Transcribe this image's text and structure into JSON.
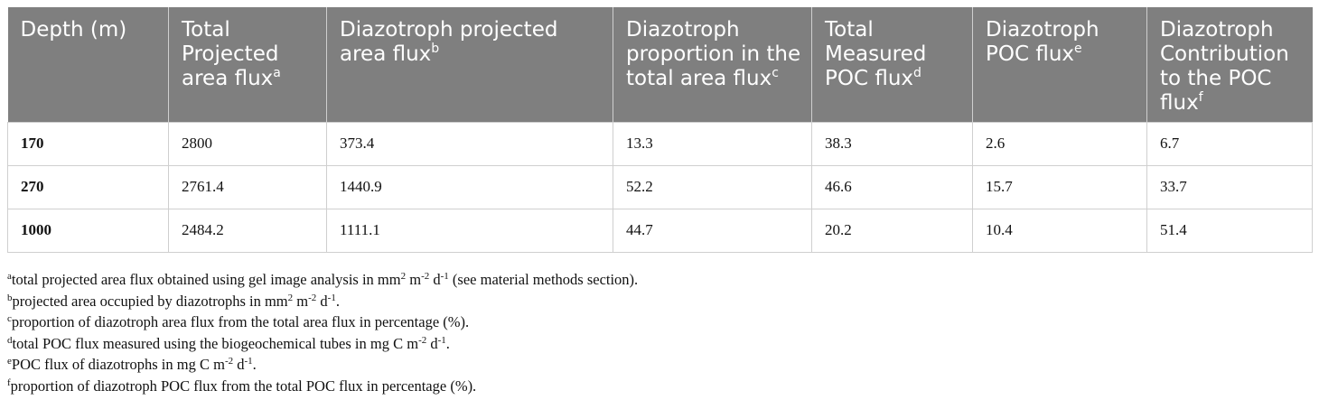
{
  "table": {
    "headers": [
      {
        "text": "Depth (m)",
        "sup": ""
      },
      {
        "text": "Total Projected area flux",
        "sup": "a"
      },
      {
        "text": "Diazotroph projected area flux",
        "sup": "b"
      },
      {
        "text": "Diazotroph proportion in the total area flux",
        "sup": "c"
      },
      {
        "text": "Total Measured POC flux",
        "sup": "d"
      },
      {
        "text": "Diazotroph POC flux",
        "sup": "e"
      },
      {
        "text": "Diazotroph Contribution to the POC flux",
        "sup": "f"
      }
    ],
    "rows": [
      [
        "170",
        "2800",
        "373.4",
        "13.3",
        "38.3",
        "2.6",
        "6.7"
      ],
      [
        "270",
        "2761.4",
        "1440.9",
        "52.2",
        "46.6",
        "15.7",
        "33.7"
      ],
      [
        "1000",
        "2484.2",
        "1111.1",
        "44.7",
        "20.2",
        "10.4",
        "51.4"
      ]
    ]
  },
  "footnotes": {
    "a": {
      "mark": "a",
      "t1": "total projected area flux obtained using gel image analysis in mm",
      "s1": "2",
      "t2": " m",
      "s2": "-2",
      "t3": " d",
      "s3": "-1",
      "t4": " (see material methods section)."
    },
    "b": {
      "mark": "b",
      "t1": "projected area occupied by diazotrophs in mm",
      "s1": "2",
      "t2": " m",
      "s2": "-2",
      "t3": " d",
      "s3": "-1",
      "t4": "."
    },
    "c": {
      "mark": "c",
      "t1": "proportion of diazotroph area flux from the total area flux in percentage (%)."
    },
    "d": {
      "mark": "d",
      "t1": "total POC flux measured using the biogeochemical tubes in mg C m",
      "s1": "-2",
      "t2": " d",
      "s2": "-1",
      "t3": "."
    },
    "e": {
      "mark": "e",
      "t1": "POC flux of diazotrophs in mg C m",
      "s1": "-2",
      "t2": " d",
      "s2": "-1",
      "t3": "."
    },
    "f": {
      "mark": "f",
      "t1": "proportion of diazotroph POC flux from the total POC flux in percentage (%)."
    }
  }
}
